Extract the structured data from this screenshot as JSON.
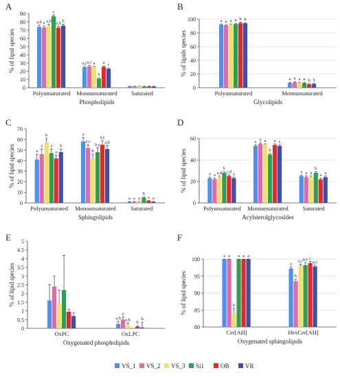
{
  "legend": [
    {
      "name": "VS_1",
      "color": "#4e8ff0"
    },
    {
      "name": "VS_2",
      "color": "#e06aa8"
    },
    {
      "name": "VS_3",
      "color": "#eee06a"
    },
    {
      "name": "Si1",
      "color": "#2e9e52"
    },
    {
      "name": "OB",
      "color": "#e22a2a"
    },
    {
      "name": "VR",
      "color": "#3d4fa8"
    }
  ],
  "chart_data": [
    {
      "panel": "A",
      "type": "bar",
      "ylabel": "% of lipid species",
      "xlabel": "Phospholipids",
      "ylim": [
        0,
        90
      ],
      "yticks": [
        0,
        10,
        20,
        30,
        40,
        50,
        60,
        70,
        80,
        90
      ],
      "categories": [
        "Polyunsaturated",
        "Monounsaturated",
        "Saturated"
      ],
      "series": [
        {
          "name": "VS_1",
          "values": [
            74,
            25,
            1.5
          ],
          "errors": [
            2,
            1,
            0.3
          ]
        },
        {
          "name": "VS_2",
          "values": [
            73,
            26,
            1.5
          ],
          "errors": [
            2,
            1,
            0.3
          ]
        },
        {
          "name": "VS_3",
          "values": [
            75,
            25,
            1.5
          ],
          "errors": [
            2,
            1,
            0.3
          ]
        },
        {
          "name": "Si1",
          "values": [
            87,
            11,
            1.5
          ],
          "errors": [
            1.5,
            1,
            0.3
          ]
        },
        {
          "name": "OB",
          "values": [
            73,
            25.5,
            1.5
          ],
          "errors": [
            1.5,
            1,
            0.3
          ]
        },
        {
          "name": "VR",
          "values": [
            75.5,
            23,
            1.5
          ],
          "errors": [
            1.5,
            1,
            0.3
          ]
        }
      ],
      "letters": [
        [
          "a,b",
          "a",
          "a,b",
          "c",
          "a,b",
          "b"
        ],
        [
          "a,c",
          "a,c",
          "a",
          "b",
          "a",
          "c"
        ],
        [
          "",
          "",
          "",
          "",
          "",
          ""
        ]
      ]
    },
    {
      "panel": "B",
      "type": "bar",
      "ylabel": "% of lipids species",
      "xlabel": "Glycolipids",
      "ylim": [
        0,
        100
      ],
      "yticks": [
        0,
        20,
        40,
        60,
        80,
        100
      ],
      "categories": [
        "Polyunsaturated",
        "Monounsaturated"
      ],
      "series": [
        {
          "name": "VS_1",
          "values": [
            92,
            7
          ],
          "errors": [
            1,
            1
          ]
        },
        {
          "name": "VS_2",
          "values": [
            91,
            8
          ],
          "errors": [
            1,
            1
          ]
        },
        {
          "name": "VS_3",
          "values": [
            92,
            7
          ],
          "errors": [
            1,
            1
          ]
        },
        {
          "name": "Si1",
          "values": [
            93,
            7
          ],
          "errors": [
            1,
            1
          ]
        },
        {
          "name": "OB",
          "values": [
            94.5,
            5
          ],
          "errors": [
            1,
            1
          ]
        },
        {
          "name": "VR",
          "values": [
            94,
            5.5
          ],
          "errors": [
            1,
            1
          ]
        }
      ],
      "letters": [
        [
          "a",
          "a",
          "a",
          "a",
          "b",
          "b"
        ],
        [
          "a",
          "a",
          "a",
          "a",
          "b",
          "b"
        ]
      ]
    },
    {
      "panel": "C",
      "type": "bar",
      "ylabel": "% of lipid species",
      "xlabel": "Sphingolipids",
      "ylim": [
        0,
        70
      ],
      "yticks": [
        0,
        10,
        20,
        30,
        40,
        50,
        60,
        70
      ],
      "categories": [
        "Polyunsaturated",
        "Monounsaturated",
        "Saturated"
      ],
      "series": [
        {
          "name": "VS_1",
          "values": [
            41,
            58,
            1
          ],
          "errors": [
            5,
            4,
            0.3
          ]
        },
        {
          "name": "VS_2",
          "values": [
            46,
            52,
            1
          ],
          "errors": [
            5,
            3,
            0.3
          ]
        },
        {
          "name": "VS_3",
          "values": [
            57,
            42,
            1
          ],
          "errors": [
            4,
            4,
            0.3
          ]
        },
        {
          "name": "Si1",
          "values": [
            47,
            48,
            5
          ],
          "errors": [
            4,
            4,
            0.5
          ]
        },
        {
          "name": "OB",
          "values": [
            42,
            55,
            2
          ],
          "errors": [
            3,
            4,
            0.3
          ]
        },
        {
          "name": "VR",
          "values": [
            48,
            51,
            1
          ],
          "errors": [
            3,
            3,
            0.3
          ]
        }
      ],
      "letters": [
        [
          "a",
          "a",
          "b",
          "a",
          "a",
          "b"
        ],
        [
          "a",
          "a,c",
          "b",
          "b,c",
          "a,c",
          "a,b"
        ],
        [
          "a",
          "a",
          "a",
          "b",
          "a",
          "a"
        ]
      ]
    },
    {
      "panel": "D",
      "type": "bar",
      "ylabel": "% of lipid species",
      "xlabel": "Acylsterolglycosides",
      "ylim": [
        0,
        60
      ],
      "yticks": [
        0,
        20,
        40,
        60
      ],
      "categories": [
        "Polyunsaturated",
        "Monounsaturated",
        "Saturated"
      ],
      "series": [
        {
          "name": "VS_1",
          "values": [
            23,
            53,
            25
          ],
          "errors": [
            1,
            1,
            1
          ]
        },
        {
          "name": "VS_2",
          "values": [
            22,
            55,
            24
          ],
          "errors": [
            1,
            1,
            1
          ]
        },
        {
          "name": "VS_3",
          "values": [
            24,
            54,
            24
          ],
          "errors": [
            1,
            1,
            1
          ]
        },
        {
          "name": "Si1",
          "values": [
            28,
            45,
            28
          ],
          "errors": [
            1,
            1,
            1
          ]
        },
        {
          "name": "OB",
          "values": [
            25,
            54,
            22
          ],
          "errors": [
            1,
            1,
            1
          ]
        },
        {
          "name": "VR",
          "values": [
            23,
            53,
            24
          ],
          "errors": [
            1,
            1,
            1
          ]
        }
      ],
      "letters": [
        [
          "a",
          "a",
          "a,d",
          "b",
          "c,d",
          "a"
        ],
        [
          "a",
          "a",
          "a",
          "b",
          "a",
          "a"
        ],
        [
          "a",
          "a",
          "a",
          "b",
          "a",
          "a"
        ]
      ]
    },
    {
      "panel": "E",
      "type": "bar",
      "ylabel": "% of lipid species",
      "xlabel": "Oxygenated phospholipids",
      "ylim": [
        0,
        5
      ],
      "yticks": [
        0,
        0.5,
        1,
        1.5,
        2,
        2.5,
        3,
        3.5,
        4,
        4.5,
        5
      ],
      "categories": [
        "OxPC",
        "OxLPC"
      ],
      "series": [
        {
          "name": "VS_1",
          "values": [
            1.6,
            0.25
          ],
          "errors": [
            0.9,
            0.15
          ]
        },
        {
          "name": "VS_2",
          "values": [
            2.4,
            0.5
          ],
          "errors": [
            0.6,
            0.15
          ]
        },
        {
          "name": "VS_3",
          "values": [
            1.4,
            0.2
          ],
          "errors": [
            0.8,
            0.1
          ]
        },
        {
          "name": "Si1",
          "values": [
            2.2,
            0
          ],
          "errors": [
            2,
            0
          ]
        },
        {
          "name": "OB",
          "values": [
            0.95,
            0.1
          ],
          "errors": [
            0.15,
            0.05
          ]
        },
        {
          "name": "VR",
          "values": [
            0.7,
            0.05
          ],
          "errors": [
            0.2,
            0.3
          ]
        }
      ],
      "letters": [
        [
          "",
          "",
          "",
          "",
          "",
          ""
        ],
        [
          "a,b",
          "a",
          "a,b",
          "",
          "b",
          "b"
        ]
      ]
    },
    {
      "panel": "F",
      "type": "bar",
      "ylabel": "% of lipid species",
      "xlabel": "Oxygenated sphingolipids",
      "ylim": [
        80,
        100
      ],
      "yticks": [
        80,
        85,
        90,
        95,
        100
      ],
      "categories": [
        "Cer[AH]",
        "HexCer[AH]"
      ],
      "series": [
        {
          "name": "VS_1",
          "values": [
            100,
            97.2
          ],
          "errors": [
            0.2,
            0.5
          ]
        },
        {
          "name": "VS_2",
          "values": [
            100,
            93.5
          ],
          "errors": [
            0.2,
            0.5
          ]
        },
        {
          "name": "VS_3",
          "values": [
            84,
            98
          ],
          "errors": [
            1.5,
            0.5
          ]
        },
        {
          "name": "Si1",
          "values": [
            100,
            98.2
          ],
          "errors": [
            0.2,
            0.8
          ]
        },
        {
          "name": "OB",
          "values": [
            100,
            98.8
          ],
          "errors": [
            0.2,
            0.5
          ]
        },
        {
          "name": "VR",
          "values": [
            100,
            97.8
          ],
          "errors": [
            0.2,
            0.4
          ]
        }
      ],
      "letters": [
        [
          "a",
          "a",
          "b",
          "a",
          "a",
          "a"
        ],
        [
          "a",
          "b",
          "a,c",
          "a,c",
          "c",
          "a,c"
        ]
      ]
    }
  ]
}
